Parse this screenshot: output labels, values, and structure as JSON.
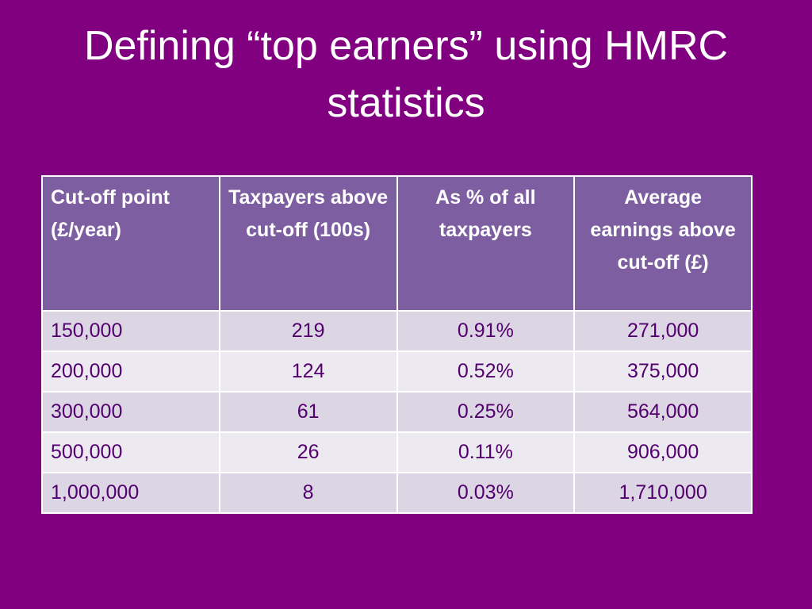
{
  "slide": {
    "title": "Defining “top earners” using HMRC statistics"
  },
  "table": {
    "headers": [
      "Cut-off point (£/year)",
      "Taxpayers above cut-off (100s)",
      "As % of all taxpayers",
      "Average earnings above cut-off (£)"
    ],
    "rows": [
      [
        "150,000",
        "219",
        "0.91%",
        "271,000"
      ],
      [
        "200,000",
        "124",
        "0.52%",
        "375,000"
      ],
      [
        "300,000",
        "61",
        "0.25%",
        "564,000"
      ],
      [
        "500,000",
        "26",
        "0.11%",
        "906,000"
      ],
      [
        "1,000,000",
        "8",
        "0.03%",
        "1,710,000"
      ]
    ]
  },
  "colors": {
    "background": "#800080",
    "header_fill": "#7d5ea0",
    "row_fill_odd": "#dcd5e3",
    "row_fill_even": "#ede9f0",
    "cell_text": "#53006f"
  }
}
